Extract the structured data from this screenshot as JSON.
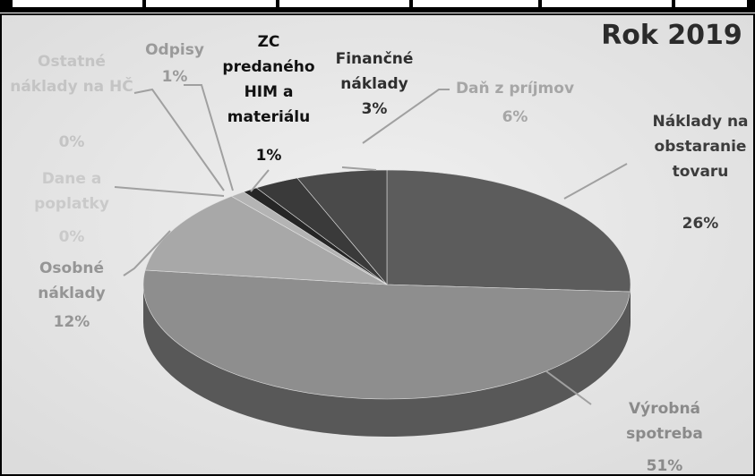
{
  "chart_data": {
    "type": "pie",
    "title": "Rok 2019",
    "categories": [
      "Náklady na obstaranie tovaru",
      "Výrobná spotreba",
      "Osobné náklady",
      "Dane a poplatky",
      "Ostatné náklady na HČ",
      "Odpisy",
      "ZC predaného HIM a materiálu",
      "Finančné náklady",
      "Daň z príjmov"
    ],
    "values": [
      26,
      51,
      12,
      0,
      0,
      1,
      1,
      3,
      6
    ],
    "value_labels": [
      "26%",
      "51%",
      "12%",
      "0%",
      "0%",
      "1%",
      "1%",
      "3%",
      "6%"
    ],
    "colors": [
      "#5c5c5c",
      "#8e8e8e",
      "#a8a8a8",
      "#c4c4c4",
      "#cfcfcf",
      "#b4b4b4",
      "#262626",
      "#3a3a3a",
      "#4a4a4a"
    ],
    "label_colors": [
      "#3c3c3c",
      "#8a8a8a",
      "#959595",
      "#cacaca",
      "#c4c4c4",
      "#9a9a9a",
      "#111111",
      "#2e2e2e",
      "#a6a6a6"
    ]
  }
}
